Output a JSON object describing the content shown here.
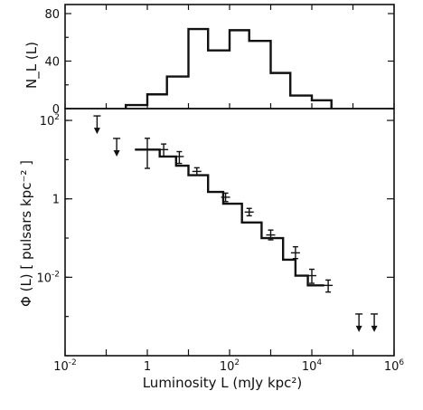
{
  "chart_data": [
    {
      "type": "bar",
      "panel": "top",
      "ylabel": "N_L (L)",
      "xscale": "log",
      "xlim": [
        0.01,
        1000000
      ],
      "ylim": [
        0,
        80
      ],
      "yticks": [
        {
          "v": 0,
          "label": "0"
        },
        {
          "v": 40,
          "label": "40"
        },
        {
          "v": 80,
          "label": "80"
        }
      ],
      "bins": [
        {
          "from": 0.3,
          "to": 1,
          "value": 3
        },
        {
          "from": 1,
          "to": 3,
          "value": 12
        },
        {
          "from": 3,
          "to": 10,
          "value": 27
        },
        {
          "from": 10,
          "to": 30,
          "value": 67
        },
        {
          "from": 30,
          "to": 100,
          "value": 49
        },
        {
          "from": 100,
          "to": 300,
          "value": 66
        },
        {
          "from": 300,
          "to": 1000,
          "value": 57
        },
        {
          "from": 1000,
          "to": 3000,
          "value": 30
        },
        {
          "from": 3000,
          "to": 10000,
          "value": 11
        },
        {
          "from": 10000,
          "to": 30000,
          "value": 7
        }
      ]
    },
    {
      "type": "line",
      "panel": "bottom",
      "title": "",
      "xlabel": "Luminosity  L  (mJy  kpc²)",
      "ylabel": "Φ (L)  [ pulsars  kpc⁻² ]",
      "xscale": "log",
      "yscale": "log",
      "xlim": [
        0.01,
        1000000
      ],
      "ylim": [
        0.0001,
        200
      ],
      "xticks": [
        {
          "v": 0.01,
          "base": "10",
          "exp": "-2"
        },
        {
          "v": 1,
          "base": "1",
          "exp": ""
        },
        {
          "v": 100,
          "base": "10",
          "exp": "2"
        },
        {
          "v": 10000,
          "base": "10",
          "exp": "4"
        },
        {
          "v": 1000000,
          "base": "10",
          "exp": "6"
        }
      ],
      "yticks": [
        {
          "v": 100,
          "base": "10",
          "exp": "2"
        },
        {
          "v": 1,
          "base": "1",
          "exp": ""
        },
        {
          "v": 0.01,
          "base": "10",
          "exp": "-2"
        }
      ],
      "bins": [
        {
          "from": 0.5,
          "to": 2,
          "value": 18
        },
        {
          "from": 2,
          "to": 5,
          "value": 12
        },
        {
          "from": 5,
          "to": 10,
          "value": 7
        },
        {
          "from": 10,
          "to": 30,
          "value": 4
        },
        {
          "from": 30,
          "to": 70,
          "value": 1.5
        },
        {
          "from": 70,
          "to": 200,
          "value": 0.75
        },
        {
          "from": 200,
          "to": 600,
          "value": 0.25
        },
        {
          "from": 600,
          "to": 2000,
          "value": 0.1
        },
        {
          "from": 2000,
          "to": 4000,
          "value": 0.028
        },
        {
          "from": 4000,
          "to": 8000,
          "value": 0.011
        },
        {
          "from": 8000,
          "to": 20000,
          "value": 0.0062
        }
      ],
      "error_bars": [
        {
          "x": 1,
          "y": 18,
          "lo": 6,
          "hi": 35,
          "xerr": [
            0.5,
            2
          ]
        },
        {
          "x": 2.5,
          "y": 18,
          "lo": 12,
          "hi": 25
        },
        {
          "x": 6,
          "y": 12,
          "lo": 8,
          "hi": 16
        },
        {
          "x": 16,
          "y": 5,
          "lo": 4,
          "hi": 6.2
        },
        {
          "x": 80,
          "y": 1.1,
          "lo": 0.85,
          "hi": 1.4
        },
        {
          "x": 300,
          "y": 0.46,
          "lo": 0.37,
          "hi": 0.57
        },
        {
          "x": 1000,
          "y": 0.12,
          "lo": 0.09,
          "hi": 0.16
        },
        {
          "x": 4000,
          "y": 0.042,
          "lo": 0.03,
          "hi": 0.06
        },
        {
          "x": 10000,
          "y": 0.011,
          "lo": 0.007,
          "hi": 0.016
        },
        {
          "x": 25000,
          "y": 0.0062,
          "lo": 0.0042,
          "hi": 0.0085
        }
      ],
      "upper_limits": [
        {
          "x": 0.06,
          "y": 45
        },
        {
          "x": 0.18,
          "y": 12
        },
        {
          "x": 140000,
          "y": 0.0004
        },
        {
          "x": 330000,
          "y": 0.0004
        }
      ]
    }
  ]
}
